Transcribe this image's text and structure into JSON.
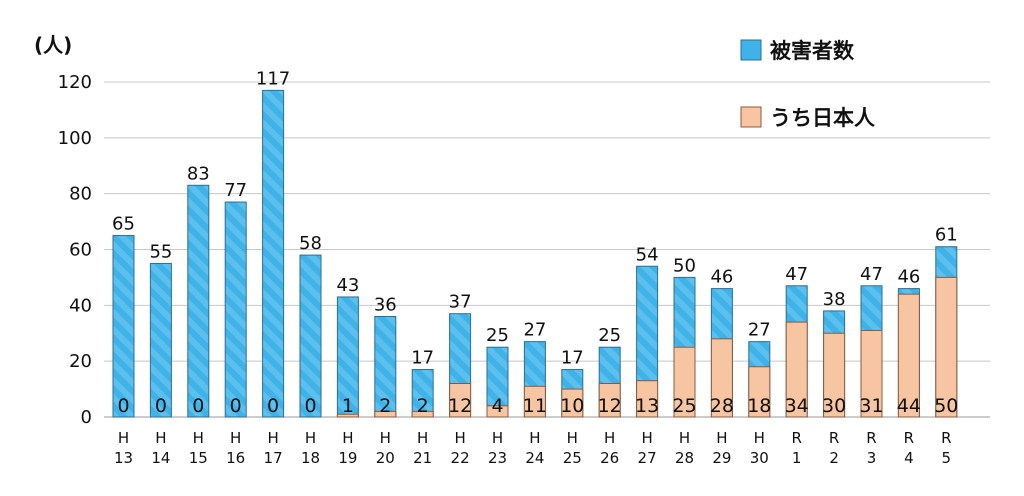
{
  "chart_data": {
    "type": "bar",
    "unit_label": "(人)",
    "ylim": [
      0,
      120
    ],
    "yticks": [
      "0",
      "20",
      "40",
      "60",
      "80",
      "100",
      "120"
    ],
    "grid": true,
    "legend_position": "top-right",
    "categories": [
      [
        "H",
        "13"
      ],
      [
        "H",
        "14"
      ],
      [
        "H",
        "15"
      ],
      [
        "H",
        "16"
      ],
      [
        "H",
        "17"
      ],
      [
        "H",
        "18"
      ],
      [
        "H",
        "19"
      ],
      [
        "H",
        "20"
      ],
      [
        "H",
        "21"
      ],
      [
        "H",
        "22"
      ],
      [
        "H",
        "23"
      ],
      [
        "H",
        "24"
      ],
      [
        "H",
        "25"
      ],
      [
        "H",
        "26"
      ],
      [
        "H",
        "27"
      ],
      [
        "H",
        "28"
      ],
      [
        "H",
        "29"
      ],
      [
        "H",
        "30"
      ],
      [
        "R",
        "1"
      ],
      [
        "R",
        "2"
      ],
      [
        "R",
        "3"
      ],
      [
        "R",
        "4"
      ],
      [
        "R",
        "5"
      ]
    ],
    "series": [
      {
        "name": "被害者数",
        "color": "#3fb2e8",
        "values": [
          65,
          55,
          83,
          77,
          117,
          58,
          43,
          36,
          17,
          37,
          25,
          27,
          17,
          25,
          54,
          50,
          46,
          27,
          47,
          38,
          47,
          46,
          61
        ]
      },
      {
        "name": "うち日本人",
        "color": "#f7c5a2",
        "values": [
          0,
          0,
          0,
          0,
          0,
          0,
          1,
          2,
          2,
          12,
          4,
          11,
          10,
          12,
          13,
          25,
          28,
          18,
          34,
          30,
          31,
          44,
          50
        ]
      }
    ]
  }
}
